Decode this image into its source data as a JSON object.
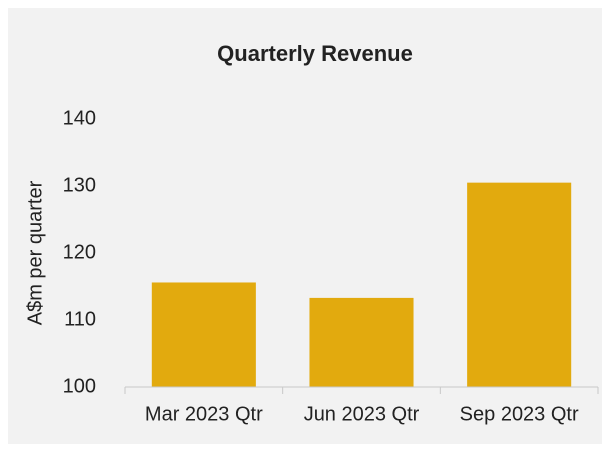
{
  "chart_data": {
    "type": "bar",
    "title": "Quarterly Revenue",
    "y_label": "A$m per quarter",
    "categories": [
      "Mar 2023 Qtr",
      "Jun 2023 Qtr",
      "Sep 2023 Qtr"
    ],
    "values": [
      115.6,
      113.3,
      130.5
    ],
    "color": "#e2aa0e",
    "ylim": [
      100,
      140
    ],
    "yticks": [
      100,
      110,
      120,
      130,
      140
    ],
    "grid": false
  }
}
